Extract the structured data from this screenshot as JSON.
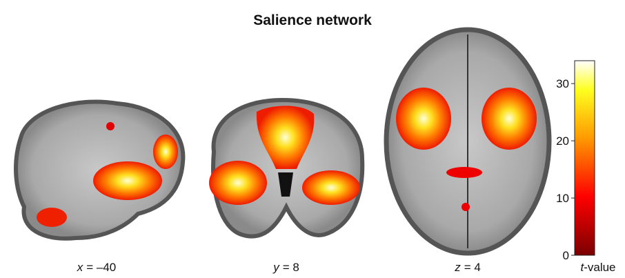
{
  "title": "Salience network",
  "panels": [
    {
      "variable": "x",
      "value": "= –40"
    },
    {
      "variable": "y",
      "value": "= 8"
    },
    {
      "variable": "z",
      "value": "= 4"
    }
  ],
  "colorbar": {
    "label_variable": "t",
    "label": "-value",
    "lim": [
      0,
      34
    ],
    "ticks": [
      0,
      10,
      20,
      30
    ]
  }
}
